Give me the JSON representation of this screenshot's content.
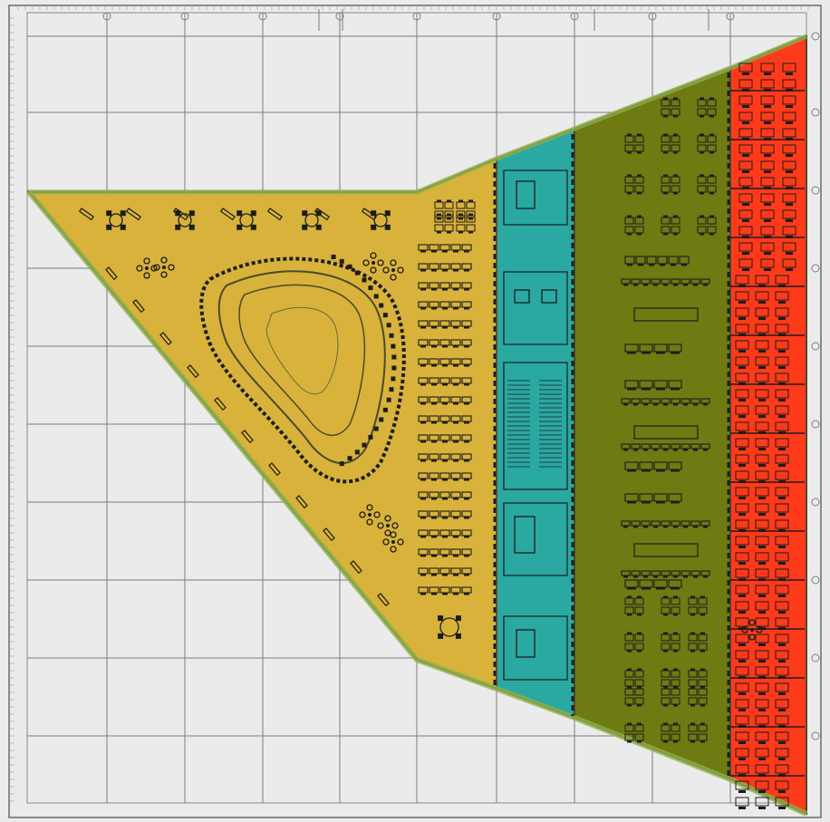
{
  "drawing": {
    "background": "#ebebeb",
    "frame_color": "#6a6a6a",
    "grid_color": "#7d7d7d",
    "outline_color": "#5a5a3a",
    "furniture_color": "#1c1c1c"
  },
  "zones": [
    {
      "id": "zone-library",
      "label": "",
      "color": "#d8b23a"
    },
    {
      "id": "zone-core",
      "label": "",
      "color": "#2aa8a2"
    },
    {
      "id": "zone-open-office",
      "label": "",
      "color": "#6f7a12"
    },
    {
      "id": "zone-offices",
      "label": "",
      "color": "#ff3a1a"
    }
  ]
}
